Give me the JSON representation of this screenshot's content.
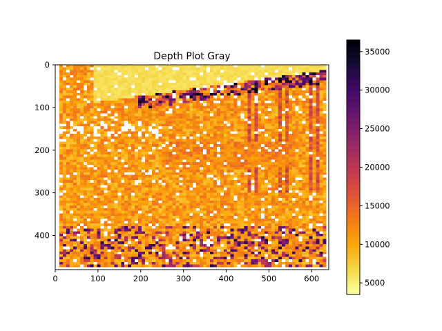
{
  "chart_data": {
    "type": "heatmap",
    "title": "Depth Plot Gray",
    "xlabel": "",
    "ylabel": "",
    "image_size": [
      640,
      480
    ],
    "xlim": [
      0,
      640
    ],
    "ylim": [
      480,
      0
    ],
    "x_ticks": [
      0,
      100,
      200,
      300,
      400,
      500,
      600
    ],
    "y_ticks": [
      0,
      100,
      200,
      300,
      400
    ],
    "colormap": "inferno_r",
    "colorbar": {
      "range": [
        3500,
        36500
      ],
      "ticks": [
        5000,
        10000,
        15000,
        20000,
        25000,
        30000,
        35000
      ]
    },
    "nan_color": "#ffffff",
    "valid_region": {
      "x": [
        10,
        630
      ],
      "y": [
        0,
        470
      ]
    },
    "depth_summary": {
      "background": 5500,
      "upper_slanted_band": 14000,
      "dark_stripe_peak": 36000,
      "lower_region_typical": 8000
    }
  }
}
